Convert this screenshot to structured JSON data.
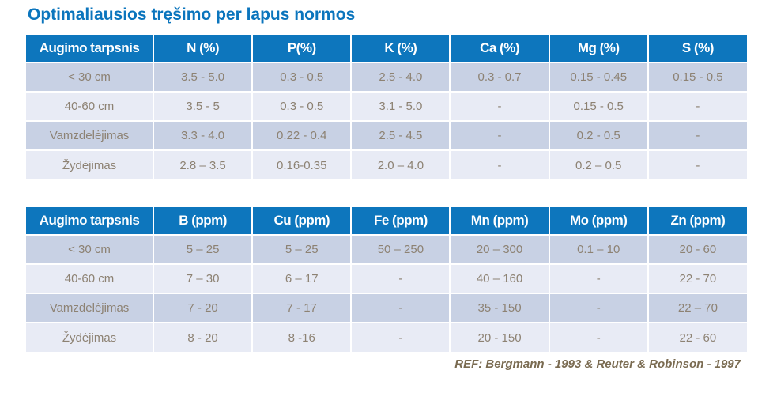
{
  "slide": {
    "title": "Optimaliausios tręšimo per lapus normos",
    "reference": "REF:  Bergmann - 1993 & Reuter & Robinson - 1997"
  },
  "colors": {
    "accent_blue": "#0d76bd",
    "title_blue": "#0b75bd",
    "row_odd": "#c8d1e4",
    "row_even": "#e8ebf5",
    "cell_text": "#8d8273",
    "reference_text": "#7a6b51",
    "header_text": "#ffffff"
  },
  "tables": [
    {
      "name": "macronutrients-percent",
      "headers": [
        "Augimo tarpsnis",
        "N (%)",
        "P(%)",
        "K (%)",
        "Ca (%)",
        "Mg (%)",
        "S (%)"
      ],
      "rows": [
        [
          "< 30 cm",
          "3.5 - 5.0",
          "0.3 - 0.5",
          "2.5 - 4.0",
          "0.3 - 0.7",
          "0.15 - 0.45",
          "0.15 - 0.5"
        ],
        [
          "40-60 cm",
          "3.5 - 5",
          "0.3 - 0.5",
          "3.1 - 5.0",
          "-",
          "0.15 - 0.5",
          "-"
        ],
        [
          "Vamzdelėjimas",
          "3.3 - 4.0",
          "0.22 - 0.4",
          "2.5 - 4.5",
          "-",
          "0.2 - 0.5",
          "-"
        ],
        [
          "Žydėjimas",
          "2.8 – 3.5",
          "0.16-0.35",
          "2.0 – 4.0",
          "-",
          "0.2 – 0.5",
          "-"
        ]
      ]
    },
    {
      "name": "micronutrients-ppm",
      "headers": [
        "Augimo tarpsnis",
        "B (ppm)",
        "Cu (ppm)",
        "Fe (ppm)",
        "Mn (ppm)",
        "Mo (ppm)",
        "Zn (ppm)"
      ],
      "rows": [
        [
          "< 30 cm",
          "5 – 25",
          "5 – 25",
          "50 – 250",
          "20 – 300",
          "0.1 – 10",
          "20 - 60"
        ],
        [
          "40-60 cm",
          "7 – 30",
          "6 – 17",
          "-",
          "40 – 160",
          "-",
          "22 - 70"
        ],
        [
          "Vamzdelėjimas",
          "7 - 20",
          "7 - 17",
          "-",
          "35 - 150",
          "-",
          "22 – 70"
        ],
        [
          "Žydėjimas",
          "8 - 20",
          "8 -16",
          "-",
          "20 - 150",
          "-",
          "22 - 60"
        ]
      ]
    }
  ]
}
